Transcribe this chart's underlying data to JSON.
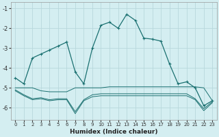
{
  "xlabel": "Humidex (Indice chaleur)",
  "bg_color": "#d4eef1",
  "grid_color": "#b8d8dc",
  "line_color": "#1a7070",
  "x_ticks": [
    0,
    1,
    2,
    3,
    4,
    5,
    6,
    7,
    8,
    9,
    10,
    11,
    12,
    13,
    14,
    15,
    16,
    17,
    18,
    19,
    20,
    21,
    22,
    23
  ],
  "y_ticks": [
    -6,
    -5,
    -4,
    -3,
    -2,
    -1
  ],
  "ylim": [
    -6.6,
    -0.7
  ],
  "xlim": [
    -0.5,
    23.5
  ],
  "line1_x": [
    0,
    1,
    2,
    3,
    4,
    5,
    6,
    7,
    8,
    9,
    10,
    11,
    12,
    13,
    14,
    15,
    16,
    17,
    18,
    19,
    20,
    21,
    22,
    23
  ],
  "line1_y": [
    -4.5,
    -4.8,
    -3.5,
    -3.3,
    -3.1,
    -2.9,
    -2.7,
    -4.2,
    -4.8,
    -3.0,
    -1.85,
    -1.7,
    -2.0,
    -1.3,
    -1.6,
    -2.5,
    -2.55,
    -2.65,
    -3.8,
    -4.8,
    -4.7,
    -5.0,
    -5.9,
    -5.65
  ],
  "line2_x": [
    0,
    1,
    2,
    3,
    4,
    5,
    6,
    7,
    8,
    9,
    10,
    11,
    12,
    13,
    14,
    15,
    16,
    17,
    18,
    19,
    20,
    21,
    22,
    23
  ],
  "line2_y": [
    -5.0,
    -5.0,
    -5.0,
    -5.15,
    -5.2,
    -5.2,
    -5.2,
    -5.0,
    -5.0,
    -5.0,
    -5.0,
    -4.95,
    -4.95,
    -4.95,
    -4.95,
    -4.95,
    -4.95,
    -4.95,
    -4.95,
    -4.95,
    -4.95,
    -4.95,
    -5.0,
    -5.65
  ],
  "line3_x": [
    0,
    1,
    2,
    3,
    4,
    5,
    6,
    7,
    8,
    9,
    10,
    11,
    12,
    13,
    14,
    15,
    16,
    17,
    18,
    19,
    20,
    21,
    22,
    23
  ],
  "line3_y": [
    -5.1,
    -5.35,
    -5.55,
    -5.5,
    -5.6,
    -5.55,
    -5.55,
    -6.2,
    -5.6,
    -5.35,
    -5.3,
    -5.3,
    -5.3,
    -5.3,
    -5.3,
    -5.3,
    -5.3,
    -5.3,
    -5.3,
    -5.3,
    -5.3,
    -5.55,
    -6.05,
    -5.7
  ],
  "line4_x": [
    0,
    1,
    2,
    3,
    4,
    5,
    6,
    7,
    8,
    9,
    10,
    11,
    12,
    13,
    14,
    15,
    16,
    17,
    18,
    19,
    20,
    21,
    22,
    23
  ],
  "line4_y": [
    -5.15,
    -5.4,
    -5.6,
    -5.55,
    -5.65,
    -5.6,
    -5.6,
    -6.3,
    -5.65,
    -5.45,
    -5.4,
    -5.4,
    -5.4,
    -5.4,
    -5.4,
    -5.4,
    -5.4,
    -5.4,
    -5.4,
    -5.4,
    -5.4,
    -5.6,
    -6.15,
    -5.75
  ]
}
